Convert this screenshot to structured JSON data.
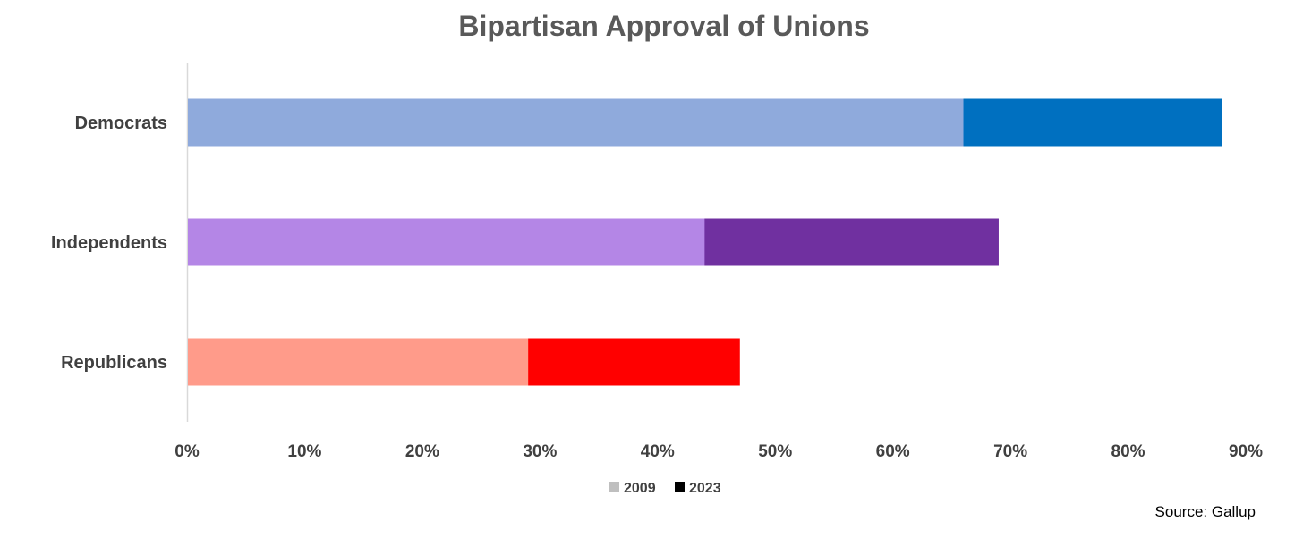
{
  "chart_data": {
    "type": "bar",
    "orientation": "horizontal",
    "stacked": false,
    "overlaid": true,
    "title": "Bipartisan Approval of Unions",
    "categories": [
      "Democrats",
      "Independents",
      "Republicans"
    ],
    "series": [
      {
        "name": "2009",
        "values": [
          66,
          44,
          29
        ],
        "colors": [
          "#8faadc",
          "#b486e6",
          "#ff9b8a"
        ],
        "legend_color": "#bfbfbf"
      },
      {
        "name": "2023",
        "values": [
          88,
          69,
          47
        ],
        "colors": [
          "#0070c0",
          "#7030a0",
          "#ff0000"
        ],
        "legend_color": "#000000"
      }
    ],
    "xlim": [
      0,
      90
    ],
    "x_ticks": [
      0,
      10,
      20,
      30,
      40,
      50,
      60,
      70,
      80,
      90
    ],
    "x_tick_labels": [
      "0%",
      "10%",
      "20%",
      "30%",
      "40%",
      "50%",
      "60%",
      "70%",
      "80%",
      "90%"
    ],
    "grid": false,
    "legend": "bottom-center",
    "xlabel": "",
    "ylabel": ""
  },
  "source": "Source: Gallup"
}
